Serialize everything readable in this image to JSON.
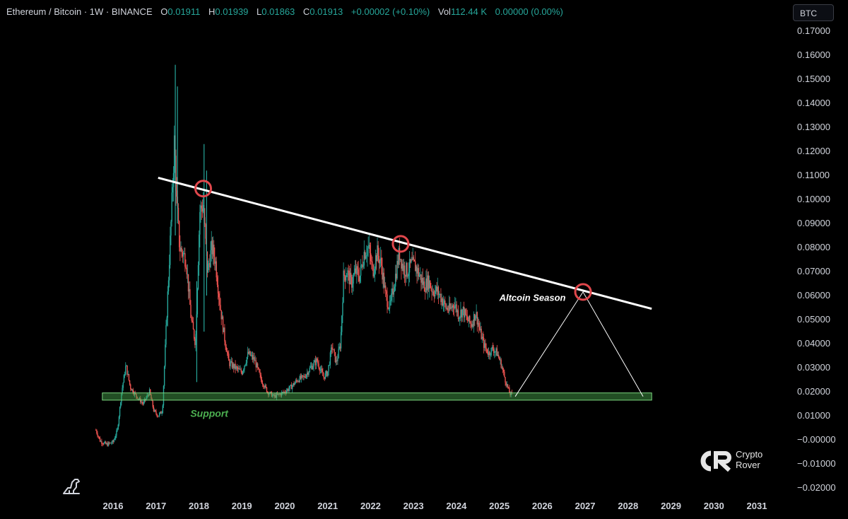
{
  "header": {
    "symbol": "Ethereum / Bitcoin · 1W · BINANCE",
    "o_key": "O",
    "o_val": "0.01911",
    "h_key": "H",
    "h_val": "0.01939",
    "l_key": "L",
    "l_val": "0.01863",
    "c_key": "C",
    "c_val": "0.01913",
    "change": "+0.00002 (+0.10%)",
    "vol_key": "Vol",
    "vol_val": "112.44 K",
    "vol_change": "0.00000 (0.00%)"
  },
  "currency_button": "BTC",
  "logo": {
    "line1": "Crypto",
    "line2": "Rover",
    "icon": "crypto-rover-logo-icon"
  },
  "colors": {
    "up": "#26a69a",
    "down": "#ef5350",
    "support": "#4caf50",
    "trendline": "#ffffff",
    "circle": "#e0474c"
  },
  "chart_data": {
    "type": "candlestick",
    "title": "Ethereum / Bitcoin · 1W · BINANCE",
    "ylim": [
      -0.025,
      0.175
    ],
    "y_ticks": [
      "0.17000",
      "0.16000",
      "0.15000",
      "0.14000",
      "0.13000",
      "0.12000",
      "0.11000",
      "0.10000",
      "0.09000",
      "0.08000",
      "0.07000",
      "0.06000",
      "0.05000",
      "0.04000",
      "0.03000",
      "0.02000",
      "0.01000",
      "−0.00000",
      "−0.01000",
      "−0.02000"
    ],
    "y_tick_values": [
      0.17,
      0.16,
      0.15,
      0.14,
      0.13,
      0.12,
      0.11,
      0.1,
      0.09,
      0.08,
      0.07,
      0.06,
      0.05,
      0.04,
      0.03,
      0.02,
      0.01,
      0.0,
      -0.01,
      -0.02
    ],
    "x_ticks": [
      "2016",
      "2017",
      "2018",
      "2019",
      "2020",
      "2021",
      "2022",
      "2023",
      "2024",
      "2025",
      "2026",
      "2027",
      "2028",
      "2029",
      "2030",
      "2031"
    ],
    "x_tick_values": [
      2016,
      2017,
      2018,
      2019,
      2020,
      2021,
      2022,
      2023,
      2024,
      2025,
      2026,
      2027,
      2028,
      2029,
      2030,
      2031
    ],
    "xlim": [
      2015.2,
      2031.6
    ],
    "price_path": [
      [
        2015.6,
        0.004
      ],
      [
        2015.7,
        -0.0005
      ],
      [
        2015.85,
        -0.002
      ],
      [
        2016.0,
        -0.001
      ],
      [
        2016.1,
        0.004
      ],
      [
        2016.2,
        0.02
      ],
      [
        2016.3,
        0.031
      ],
      [
        2016.4,
        0.022
      ],
      [
        2016.55,
        0.018
      ],
      [
        2016.7,
        0.015
      ],
      [
        2016.85,
        0.02
      ],
      [
        2016.95,
        0.012
      ],
      [
        2017.05,
        0.01
      ],
      [
        2017.15,
        0.012
      ],
      [
        2017.22,
        0.04
      ],
      [
        2017.35,
        0.09
      ],
      [
        2017.43,
        0.125
      ],
      [
        2017.48,
        0.1
      ],
      [
        2017.55,
        0.08
      ],
      [
        2017.7,
        0.075
      ],
      [
        2017.82,
        0.05
      ],
      [
        2017.92,
        0.04
      ],
      [
        2018.02,
        0.095
      ],
      [
        2018.1,
        0.098
      ],
      [
        2018.2,
        0.07
      ],
      [
        2018.3,
        0.08
      ],
      [
        2018.38,
        0.075
      ],
      [
        2018.5,
        0.055
      ],
      [
        2018.6,
        0.042
      ],
      [
        2018.7,
        0.032
      ],
      [
        2018.85,
        0.03
      ],
      [
        2019.0,
        0.028
      ],
      [
        2019.15,
        0.036
      ],
      [
        2019.3,
        0.033
      ],
      [
        2019.45,
        0.025
      ],
      [
        2019.6,
        0.02
      ],
      [
        2019.75,
        0.018
      ],
      [
        2019.9,
        0.019
      ],
      [
        2020.0,
        0.02
      ],
      [
        2020.15,
        0.022
      ],
      [
        2020.3,
        0.025
      ],
      [
        2020.45,
        0.026
      ],
      [
        2020.6,
        0.03
      ],
      [
        2020.75,
        0.033
      ],
      [
        2020.9,
        0.026
      ],
      [
        2021.0,
        0.028
      ],
      [
        2021.1,
        0.039
      ],
      [
        2021.2,
        0.032
      ],
      [
        2021.3,
        0.04
      ],
      [
        2021.37,
        0.068
      ],
      [
        2021.45,
        0.07
      ],
      [
        2021.55,
        0.065
      ],
      [
        2021.65,
        0.07
      ],
      [
        2021.75,
        0.068
      ],
      [
        2021.85,
        0.078
      ],
      [
        2021.95,
        0.08
      ],
      [
        2022.05,
        0.07
      ],
      [
        2022.15,
        0.078
      ],
      [
        2022.25,
        0.073
      ],
      [
        2022.35,
        0.06
      ],
      [
        2022.45,
        0.055
      ],
      [
        2022.55,
        0.065
      ],
      [
        2022.67,
        0.078
      ],
      [
        2022.75,
        0.072
      ],
      [
        2022.85,
        0.07
      ],
      [
        2022.95,
        0.073
      ],
      [
        2023.05,
        0.072
      ],
      [
        2023.15,
        0.068
      ],
      [
        2023.25,
        0.064
      ],
      [
        2023.35,
        0.066
      ],
      [
        2023.45,
        0.062
      ],
      [
        2023.55,
        0.062
      ],
      [
        2023.65,
        0.059
      ],
      [
        2023.75,
        0.055
      ],
      [
        2023.85,
        0.054
      ],
      [
        2023.95,
        0.057
      ],
      [
        2024.05,
        0.052
      ],
      [
        2024.15,
        0.054
      ],
      [
        2024.25,
        0.05
      ],
      [
        2024.35,
        0.048
      ],
      [
        2024.45,
        0.053
      ],
      [
        2024.55,
        0.045
      ],
      [
        2024.65,
        0.039
      ],
      [
        2024.75,
        0.036
      ],
      [
        2024.85,
        0.038
      ],
      [
        2024.95,
        0.036
      ],
      [
        2025.05,
        0.031
      ],
      [
        2025.15,
        0.024
      ],
      [
        2025.25,
        0.019
      ],
      [
        2025.3,
        0.019
      ]
    ],
    "spikes": [
      {
        "x": 2017.45,
        "high": 0.156,
        "low": 0.085
      },
      {
        "x": 2017.5,
        "high": 0.147,
        "low": 0.09
      },
      {
        "x": 2018.12,
        "high": 0.123,
        "low": 0.045
      },
      {
        "x": 2018.18,
        "high": 0.112,
        "low": 0.06
      },
      {
        "x": 2017.95,
        "high": 0.066,
        "low": 0.024
      }
    ],
    "trendline": {
      "start": [
        2017.05,
        0.109
      ],
      "end": [
        2028.55,
        0.0545
      ]
    },
    "trend_circles": [
      [
        2018.1,
        0.1045
      ],
      [
        2022.7,
        0.0815
      ],
      [
        2026.95,
        0.0615
      ]
    ],
    "support_zone": {
      "x_start": 2015.75,
      "x_end": 2028.55,
      "y_low": 0.0165,
      "y_high": 0.0195,
      "label": "Support"
    },
    "projection": {
      "points": [
        [
          2025.37,
          0.018
        ],
        [
          2026.95,
          0.0615
        ],
        [
          2028.35,
          0.018
        ]
      ],
      "label": "Altcoin Season"
    }
  }
}
